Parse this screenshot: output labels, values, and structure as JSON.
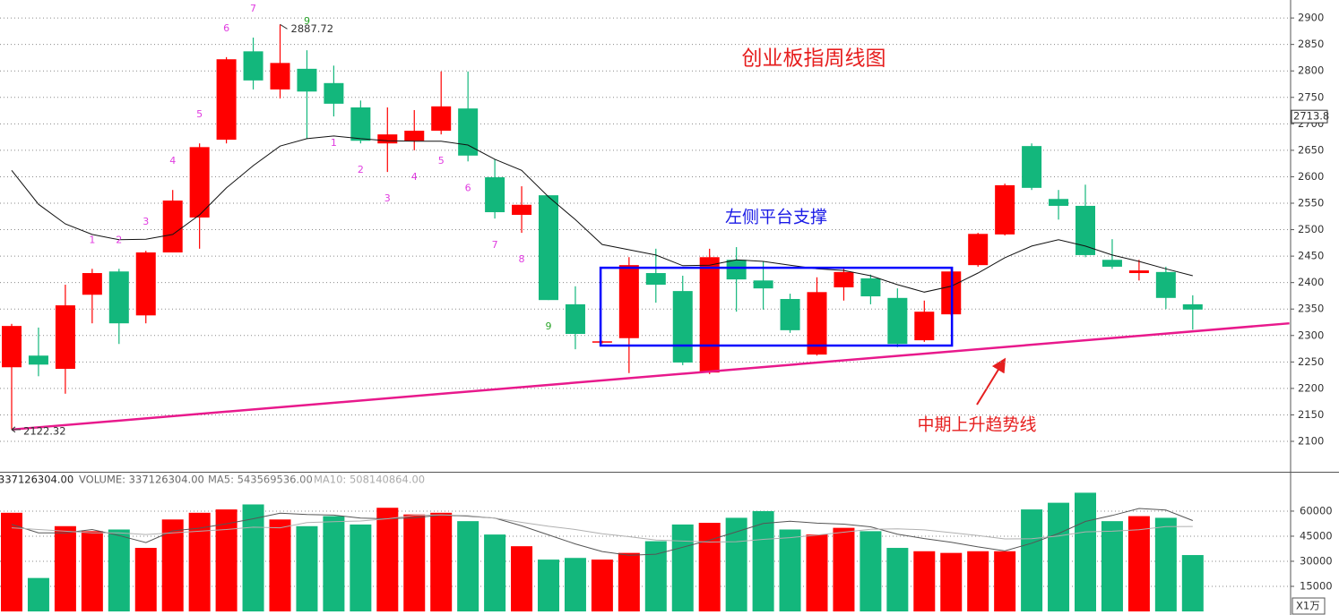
{
  "chart_data": {
    "type": "candlestick",
    "title": "创业板指周线图",
    "annotations": {
      "platform": "左侧平台支撑",
      "trend": "中期上升趋势线"
    },
    "up_color": "#ff0000",
    "down_color": "#13b77c",
    "open": [
      2240,
      2262,
      2237,
      2377,
      2421,
      2338,
      2457,
      2523,
      2670,
      2837,
      2765,
      2804,
      2777,
      2731,
      2663,
      2668,
      2687,
      2729,
      2599,
      2528,
      2565,
      2359,
      2287,
      2295,
      2418,
      2384,
      2230,
      2443,
      2404,
      2369,
      2264,
      2391,
      2408,
      2371,
      2291,
      2340,
      2433,
      2491,
      2658,
      2558,
      2545,
      2443,
      2418,
      2420,
      2359
    ],
    "high": [
      2322,
      2315,
      2396,
      2426,
      2426,
      2460,
      2575,
      2663,
      2826,
      2863,
      2887.72,
      2839,
      2810,
      2744,
      2731,
      2726,
      2799,
      2799,
      2633,
      2582,
      2565,
      2393,
      2290,
      2448,
      2464,
      2413,
      2464,
      2467,
      2440,
      2379,
      2410,
      2426,
      2415,
      2389,
      2366,
      2426,
      2494,
      2587,
      2663,
      2575,
      2585,
      2482,
      2443,
      2430,
      2376
    ],
    "low": [
      2122.32,
      2223,
      2190,
      2323,
      2284,
      2323,
      2457,
      2464,
      2663,
      2765,
      2748,
      2672,
      2714,
      2663,
      2609,
      2650,
      2680,
      2629,
      2521,
      2494,
      2367,
      2274,
      2285,
      2229,
      2362,
      2244,
      2227,
      2345,
      2349,
      2305,
      2262,
      2366,
      2359,
      2278,
      2288,
      2338,
      2430,
      2489,
      2575,
      2519,
      2448,
      2426,
      2404,
      2350,
      2311
    ],
    "close": [
      2318,
      2245,
      2357,
      2418,
      2323,
      2457,
      2555,
      2656,
      2822,
      2782,
      2815,
      2761,
      2738,
      2668,
      2680,
      2687,
      2733,
      2640,
      2533,
      2547,
      2367,
      2303,
      2289,
      2433,
      2396,
      2249,
      2448,
      2406,
      2389,
      2310,
      2382,
      2420,
      2374,
      2284,
      2345,
      2421,
      2492,
      2584,
      2579,
      2545,
      2452,
      2430,
      2423,
      2371,
      2349
    ],
    "ma": {
      "color": "#111111",
      "values": [
        2612,
        2548,
        2511,
        2491,
        2481,
        2482,
        2491,
        2528,
        2579,
        2621,
        2658,
        2672,
        2677,
        2672,
        2668,
        2667,
        2667,
        2660,
        2633,
        2612,
        2562,
        2519,
        2472,
        2462,
        2452,
        2432,
        2433,
        2443,
        2440,
        2433,
        2426,
        2423,
        2413,
        2396,
        2382,
        2393,
        2418,
        2447,
        2469,
        2481,
        2469,
        2452,
        2440,
        2426,
        2413
      ]
    },
    "td_sell": [
      null,
      null,
      null,
      1,
      2,
      3,
      4,
      5,
      6,
      7,
      null,
      9,
      null,
      null,
      null,
      null,
      null,
      null,
      null,
      null,
      null,
      null,
      null,
      null,
      null,
      null,
      null,
      null,
      null,
      null,
      null,
      null,
      null,
      null,
      null,
      null,
      null,
      null,
      null,
      null,
      null,
      null,
      null,
      null,
      null
    ],
    "td_buy": [
      null,
      null,
      null,
      null,
      null,
      null,
      null,
      null,
      null,
      null,
      null,
      null,
      1,
      2,
      3,
      4,
      5,
      6,
      7,
      8,
      9,
      null,
      null,
      null,
      null,
      null,
      null,
      null,
      null,
      null,
      null,
      null,
      null,
      null,
      null,
      null,
      null,
      null,
      null,
      null,
      null,
      null,
      null,
      null,
      null
    ],
    "td_color": "#e03ce0",
    "td_complete_color": "#2aa52a",
    "trend_line": {
      "color": "#e8198c",
      "x": [
        0,
        47.6
      ],
      "y": [
        2122.32,
        2323
      ]
    },
    "box": {
      "color": "#0000ff",
      "x": [
        21.94,
        35.03
      ],
      "y": [
        2281,
        2428
      ]
    },
    "axis_marker": 2713.8,
    "ylim": [
      2042.5,
      2934
    ],
    "yticks": [
      2100,
      2150,
      2200,
      2250,
      2300,
      2350,
      2400,
      2450,
      2500,
      2550,
      2600,
      2650,
      2700,
      2750,
      2800,
      2850,
      2900
    ],
    "grid": true,
    "volume": {
      "header": [
        "337126304.00",
        "VOLUME: 337126304.00",
        "MA5: 543569536.00",
        "MA10: 508140864.00"
      ],
      "unit": "X1万",
      "values": [
        59000,
        20000,
        51000,
        48000,
        49000,
        38000,
        55000,
        59000,
        61000,
        64000,
        55000,
        51000,
        57000,
        52000,
        62000,
        58000,
        59000,
        54000,
        46000,
        39000,
        31000,
        32000,
        31000,
        35000,
        42000,
        52000,
        53000,
        56000,
        60000,
        49000,
        46000,
        50000,
        48000,
        38000,
        36000,
        35000,
        36000,
        36000,
        61000,
        65000,
        71000,
        54000,
        57000,
        56000,
        33712.6304
      ],
      "ma5": {
        "color": "#555555",
        "values": [
          52000,
          47000,
          47000,
          49000,
          45400,
          41200,
          48200,
          49800,
          52400,
          55400,
          58800,
          58000,
          57600,
          55800,
          55400,
          56000,
          57600,
          57000,
          55800,
          51200,
          45800,
          40400,
          35800,
          33600,
          34200,
          38400,
          42600,
          47600,
          52600,
          54000,
          52800,
          52200,
          50600,
          46200,
          43600,
          41400,
          38600,
          36200,
          40800,
          46600,
          53800,
          57400,
          61600,
          60600,
          54356.9536
        ]
      },
      "ma10": {
        "color": "#b0b0b0",
        "values": [
          50000,
          49000,
          48000,
          47000,
          47000,
          46000,
          47000,
          48000,
          49000,
          50400,
          50000,
          53100,
          53700,
          54100,
          55400,
          57400,
          57800,
          57300,
          55800,
          53300,
          50900,
          49000,
          46400,
          44700,
          42700,
          42100,
          41500,
          41700,
          43100,
          44100,
          45600,
          47400,
          49100,
          49400,
          48800,
          47100,
          45400,
          43400,
          43500,
          45100,
          47600,
          48000,
          48900,
          50700,
          50814.0864
        ]
      },
      "ylim": [
        0,
        83000
      ],
      "yticks": [
        15000,
        30000,
        45000,
        60000
      ],
      "grid": true
    }
  }
}
